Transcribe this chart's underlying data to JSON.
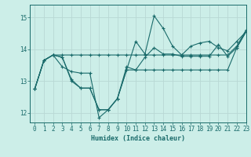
{
  "xlabel": "Humidex (Indice chaleur)",
  "background_color": "#cceee8",
  "line_color": "#1a6b6b",
  "grid_color": "#b8d8d4",
  "xlim": [
    -0.5,
    23
  ],
  "ylim": [
    11.7,
    15.4
  ],
  "yticks": [
    12,
    13,
    14,
    15
  ],
  "xticks": [
    0,
    1,
    2,
    3,
    4,
    5,
    6,
    7,
    8,
    9,
    10,
    11,
    12,
    13,
    14,
    15,
    16,
    17,
    18,
    19,
    20,
    21,
    22,
    23
  ],
  "curves": [
    [
      12.75,
      13.65,
      13.82,
      13.82,
      13.82,
      13.82,
      13.82,
      13.82,
      13.82,
      13.82,
      13.82,
      13.82,
      13.82,
      13.82,
      13.82,
      13.82,
      13.82,
      13.82,
      13.82,
      13.82,
      13.82,
      13.82,
      14.1,
      14.6
    ],
    [
      12.75,
      13.65,
      13.82,
      13.75,
      13.0,
      12.78,
      12.78,
      12.1,
      12.1,
      12.45,
      13.45,
      13.35,
      13.75,
      14.05,
      13.85,
      13.85,
      13.78,
      13.78,
      13.78,
      13.78,
      14.15,
      13.78,
      14.05,
      14.55
    ],
    [
      12.75,
      13.65,
      13.82,
      13.75,
      13.05,
      12.78,
      12.78,
      12.1,
      12.1,
      12.45,
      13.35,
      14.25,
      13.85,
      15.05,
      14.65,
      14.1,
      13.82,
      14.1,
      14.2,
      14.25,
      14.05,
      13.95,
      14.25,
      14.55
    ],
    [
      12.75,
      13.65,
      13.82,
      13.45,
      13.3,
      13.25,
      13.25,
      11.85,
      12.1,
      12.45,
      13.35,
      13.35,
      13.35,
      13.35,
      13.35,
      13.35,
      13.35,
      13.35,
      13.35,
      13.35,
      13.35,
      13.35,
      14.05,
      14.55
    ]
  ]
}
